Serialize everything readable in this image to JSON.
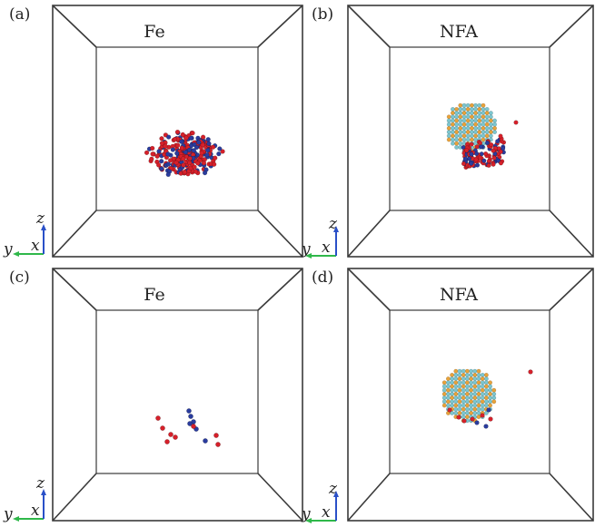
{
  "figure": {
    "panels": [
      {
        "id": "a",
        "label": "(a)",
        "title": "Fe",
        "material": "Fe",
        "state": "initial",
        "cluster": "large_red_blue"
      },
      {
        "id": "b",
        "label": "(b)",
        "title": "NFA",
        "material": "NFA",
        "state": "initial",
        "cluster": "particle_with_red_blue"
      },
      {
        "id": "c",
        "label": "(c)",
        "title": "Fe",
        "material": "Fe",
        "state": "final",
        "cluster": "sparse_red_blue"
      },
      {
        "id": "d",
        "label": "(d)",
        "title": "NFA",
        "material": "NFA",
        "state": "final",
        "cluster": "particle_with_few_red"
      }
    ],
    "axes": {
      "y": "y",
      "x": "x",
      "z": "z"
    },
    "colors": {
      "interstitial": "#d6202a",
      "vacancy": "#2a3c9e",
      "particle_cyan": "#7cc6cf",
      "particle_orange": "#e8a23a",
      "axis_y_arrow": "#2fb84a",
      "axis_z_arrow": "#2a50c8",
      "box_line": "#3a3a3a"
    }
  }
}
